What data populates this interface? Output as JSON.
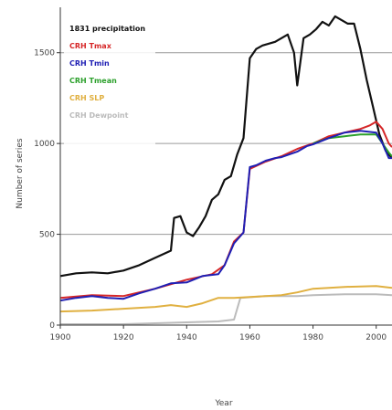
{
  "chart_data": {
    "type": "line",
    "title": "",
    "xlabel": "Year",
    "ylabel": "Number of series",
    "xlim": [
      1900,
      2005
    ],
    "ylim": [
      0,
      1750
    ],
    "xticks": [
      1900,
      1920,
      1940,
      1960,
      1980,
      2000
    ],
    "yticks": [
      0,
      500,
      1000,
      1500
    ],
    "grid": "horizontal",
    "legend_position": "top-left",
    "series": [
      {
        "name": "1831 precipitation",
        "color": "#111111",
        "points": [
          [
            1900,
            270
          ],
          [
            1905,
            285
          ],
          [
            1910,
            290
          ],
          [
            1915,
            285
          ],
          [
            1920,
            300
          ],
          [
            1925,
            330
          ],
          [
            1930,
            370
          ],
          [
            1935,
            410
          ],
          [
            1936,
            590
          ],
          [
            1938,
            600
          ],
          [
            1940,
            510
          ],
          [
            1942,
            490
          ],
          [
            1944,
            540
          ],
          [
            1946,
            600
          ],
          [
            1948,
            690
          ],
          [
            1950,
            720
          ],
          [
            1952,
            800
          ],
          [
            1954,
            820
          ],
          [
            1956,
            940
          ],
          [
            1958,
            1030
          ],
          [
            1960,
            1470
          ],
          [
            1962,
            1520
          ],
          [
            1964,
            1540
          ],
          [
            1966,
            1550
          ],
          [
            1968,
            1560
          ],
          [
            1970,
            1580
          ],
          [
            1972,
            1600
          ],
          [
            1974,
            1500
          ],
          [
            1975,
            1320
          ],
          [
            1977,
            1580
          ],
          [
            1979,
            1600
          ],
          [
            1981,
            1630
          ],
          [
            1983,
            1670
          ],
          [
            1985,
            1650
          ],
          [
            1987,
            1700
          ],
          [
            1989,
            1680
          ],
          [
            1991,
            1660
          ],
          [
            1993,
            1660
          ],
          [
            1995,
            1520
          ],
          [
            1997,
            1350
          ],
          [
            1999,
            1200
          ],
          [
            2001,
            1050
          ],
          [
            2003,
            960
          ],
          [
            2005,
            920
          ]
        ]
      },
      {
        "name": "CRH Tmax",
        "color": "#d62728",
        "points": [
          [
            1900,
            150
          ],
          [
            1910,
            165
          ],
          [
            1920,
            160
          ],
          [
            1930,
            200
          ],
          [
            1940,
            250
          ],
          [
            1948,
            280
          ],
          [
            1952,
            330
          ],
          [
            1955,
            460
          ],
          [
            1958,
            510
          ],
          [
            1960,
            860
          ],
          [
            1965,
            900
          ],
          [
            1970,
            930
          ],
          [
            1975,
            970
          ],
          [
            1980,
            1000
          ],
          [
            1985,
            1040
          ],
          [
            1990,
            1060
          ],
          [
            1995,
            1080
          ],
          [
            1998,
            1100
          ],
          [
            2000,
            1120
          ],
          [
            2002,
            1080
          ],
          [
            2004,
            1000
          ],
          [
            2005,
            980
          ]
        ]
      },
      {
        "name": "CRH Tmin",
        "color": "#1f1fb4",
        "points": [
          [
            1900,
            135
          ],
          [
            1905,
            150
          ],
          [
            1910,
            160
          ],
          [
            1915,
            150
          ],
          [
            1920,
            145
          ],
          [
            1925,
            175
          ],
          [
            1930,
            200
          ],
          [
            1935,
            230
          ],
          [
            1940,
            235
          ],
          [
            1945,
            270
          ],
          [
            1950,
            280
          ],
          [
            1952,
            330
          ],
          [
            1955,
            450
          ],
          [
            1958,
            510
          ],
          [
            1960,
            870
          ],
          [
            1962,
            880
          ],
          [
            1965,
            905
          ],
          [
            1968,
            920
          ],
          [
            1970,
            925
          ],
          [
            1975,
            955
          ],
          [
            1978,
            985
          ],
          [
            1980,
            995
          ],
          [
            1985,
            1030
          ],
          [
            1990,
            1060
          ],
          [
            1995,
            1070
          ],
          [
            2000,
            1060
          ],
          [
            2002,
            1000
          ],
          [
            2004,
            920
          ],
          [
            2005,
            920
          ]
        ]
      },
      {
        "name": "CRH Tmean",
        "color": "#2ca02c",
        "points": [
          [
            1980,
            1000
          ],
          [
            1985,
            1030
          ],
          [
            1990,
            1040
          ],
          [
            1995,
            1050
          ],
          [
            2000,
            1050
          ],
          [
            2002,
            1000
          ],
          [
            2004,
            950
          ],
          [
            2005,
            930
          ]
        ]
      },
      {
        "name": "CRH SLP",
        "color": "#e0b040",
        "points": [
          [
            1900,
            75
          ],
          [
            1910,
            80
          ],
          [
            1920,
            90
          ],
          [
            1930,
            100
          ],
          [
            1935,
            110
          ],
          [
            1940,
            100
          ],
          [
            1945,
            120
          ],
          [
            1950,
            150
          ],
          [
            1955,
            150
          ],
          [
            1960,
            155
          ],
          [
            1970,
            165
          ],
          [
            1975,
            180
          ],
          [
            1980,
            200
          ],
          [
            1990,
            210
          ],
          [
            2000,
            215
          ],
          [
            2005,
            205
          ]
        ]
      },
      {
        "name": "CRH Dewpoint",
        "color": "#bbbbbb",
        "points": [
          [
            1900,
            5
          ],
          [
            1920,
            5
          ],
          [
            1930,
            10
          ],
          [
            1940,
            15
          ],
          [
            1950,
            20
          ],
          [
            1955,
            30
          ],
          [
            1957,
            150
          ],
          [
            1965,
            160
          ],
          [
            1975,
            160
          ],
          [
            1980,
            165
          ],
          [
            1990,
            170
          ],
          [
            2000,
            170
          ],
          [
            2005,
            165
          ]
        ]
      }
    ]
  }
}
